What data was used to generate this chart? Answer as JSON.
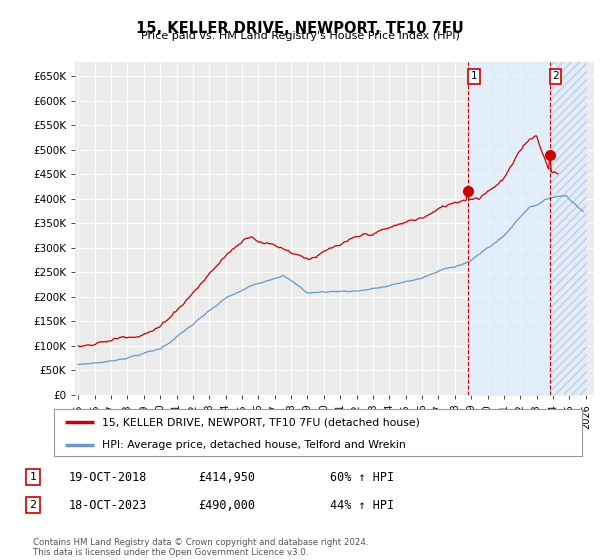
{
  "title": "15, KELLER DRIVE, NEWPORT, TF10 7FU",
  "subtitle": "Price paid vs. HM Land Registry's House Price Index (HPI)",
  "ylabel_ticks": [
    "£0",
    "£50K",
    "£100K",
    "£150K",
    "£200K",
    "£250K",
    "£300K",
    "£350K",
    "£400K",
    "£450K",
    "£500K",
    "£550K",
    "£600K",
    "£650K"
  ],
  "ytick_vals": [
    0,
    50000,
    100000,
    150000,
    200000,
    250000,
    300000,
    350000,
    400000,
    450000,
    500000,
    550000,
    600000,
    650000
  ],
  "ylim": [
    0,
    680000
  ],
  "xlim_start": 1994.8,
  "xlim_end": 2026.5,
  "xtick_years": [
    1995,
    1996,
    1997,
    1998,
    1999,
    2000,
    2001,
    2002,
    2003,
    2004,
    2005,
    2006,
    2007,
    2008,
    2009,
    2010,
    2011,
    2012,
    2013,
    2014,
    2015,
    2016,
    2017,
    2018,
    2019,
    2020,
    2021,
    2022,
    2023,
    2024,
    2025,
    2026
  ],
  "marker1_x": 2018.8,
  "marker1_y": 414950,
  "marker2_x": 2023.8,
  "marker2_y": 490000,
  "vline1_x": 2018.8,
  "vline2_x": 2023.8,
  "legend_label_red": "15, KELLER DRIVE, NEWPORT, TF10 7FU (detached house)",
  "legend_label_blue": "HPI: Average price, detached house, Telford and Wrekin",
  "annotation1_date": "19-OCT-2018",
  "annotation1_price": "£414,950",
  "annotation1_hpi": "60% ↑ HPI",
  "annotation2_date": "18-OCT-2023",
  "annotation2_price": "£490,000",
  "annotation2_hpi": "44% ↑ HPI",
  "footer": "Contains HM Land Registry data © Crown copyright and database right 2024.\nThis data is licensed under the Open Government Licence v3.0.",
  "red_color": "#cc0000",
  "blue_color": "#6699cc",
  "shade_color": "#ddeeff",
  "background_color": "#ffffff",
  "plot_bg_color": "#ebebeb",
  "grid_color": "#ffffff"
}
